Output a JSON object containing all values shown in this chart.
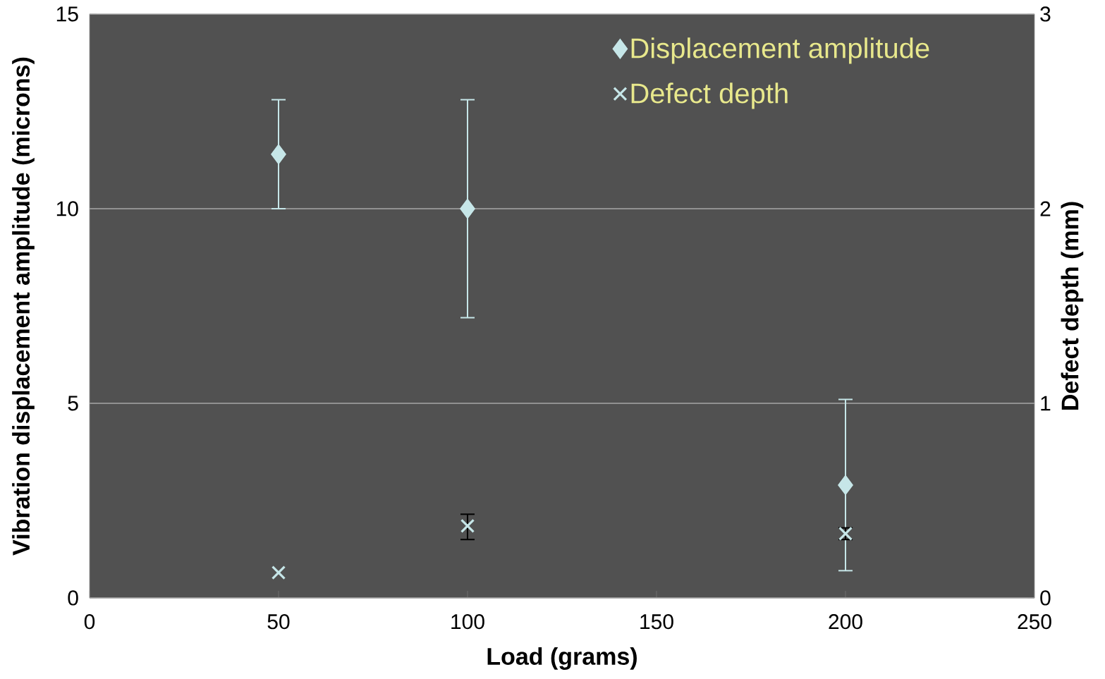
{
  "chart_data": {
    "type": "scatter",
    "xlabel": "Load (grams)",
    "ylabel": "Vibration displacement amplitude (microns)",
    "y2label": "Defect depth (mm)",
    "x": [
      50,
      100,
      200
    ],
    "series": [
      {
        "name": "Displacement amplitude",
        "color": "#c6e6e8",
        "marker": "diamond",
        "values": [
          11.4,
          10.0,
          2.9
        ],
        "errors": [
          [
            10.0,
            12.8
          ],
          [
            7.2,
            12.8
          ],
          [
            0.7,
            5.1
          ]
        ]
      },
      {
        "name": "Defect depth",
        "color": "#c6e6e8",
        "marker": "cross",
        "axis": "y2",
        "values": [
          0.13,
          0.37,
          0.33
        ],
        "errors": [
          null,
          [
            0.3,
            0.43
          ],
          [
            0.3,
            0.36
          ]
        ]
      }
    ],
    "xlim": [
      0,
      250
    ],
    "xticks": [
      0,
      50,
      100,
      150,
      200,
      250
    ],
    "ylim": [
      0,
      15
    ],
    "yticks": [
      0,
      5,
      10,
      15
    ],
    "y2lim": [
      0,
      3
    ],
    "y2ticks": [
      0,
      1,
      2,
      3
    ],
    "grid": "y",
    "legend": "top right"
  }
}
